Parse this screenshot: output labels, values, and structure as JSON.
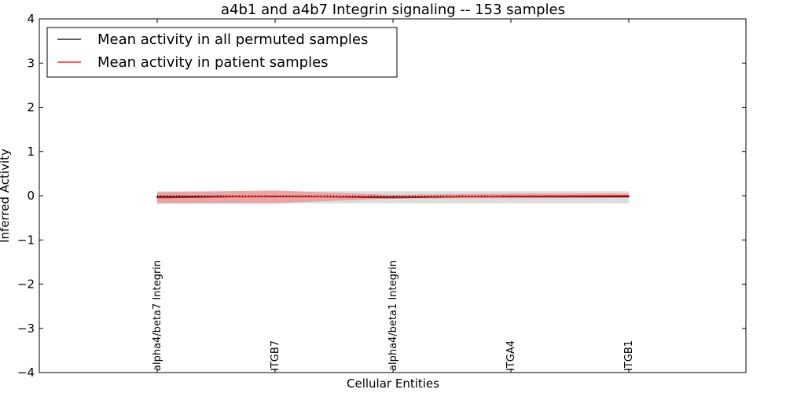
{
  "chart_data": {
    "type": "line",
    "title": "a4b1 and a4b7 Integrin signaling -- 153 samples",
    "xlabel": "Cellular Entities",
    "ylabel": "Inferred Activity",
    "ylim": [
      -4,
      4
    ],
    "yticks": [
      4,
      3,
      2,
      1,
      0,
      -1,
      -2,
      -3,
      -4
    ],
    "ytick_labels": [
      "4",
      "3",
      "2",
      "1",
      "0",
      "−1",
      "−2",
      "−3",
      "−4"
    ],
    "categories": [
      "alpha4/beta7 Integrin",
      "ITGB7",
      "alpha4/beta1 Integrin",
      "ITGA4",
      "ITGB1"
    ],
    "legend_position": "top-left",
    "reference_line": 0,
    "series": [
      {
        "name": "Mean activity in all permuted samples",
        "color": "#000000",
        "values": [
          -0.02,
          -0.02,
          -0.03,
          -0.02,
          -0.02
        ],
        "band_lower": [
          -0.18,
          -0.17,
          -0.17,
          -0.17,
          -0.17
        ],
        "band_upper": [
          0.1,
          0.1,
          0.1,
          0.1,
          0.1
        ],
        "band_color": "#bfbfbf"
      },
      {
        "name": "Mean activity in patient samples",
        "color": "#ff0000",
        "values": [
          -0.05,
          -0.01,
          -0.05,
          -0.01,
          0.0
        ],
        "band_lower": [
          -0.17,
          -0.17,
          -0.06,
          -0.06,
          -0.05
        ],
        "band_upper": [
          0.08,
          0.12,
          0.02,
          0.05,
          0.05
        ],
        "band_color": "#f08080"
      }
    ]
  }
}
